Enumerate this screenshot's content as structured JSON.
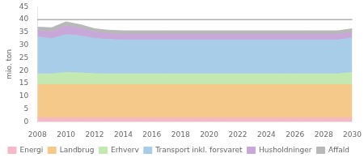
{
  "chart_data": {
    "type": "area",
    "stacked": true,
    "x": [
      2008,
      2009,
      2010,
      2011,
      2012,
      2013,
      2014,
      2015,
      2016,
      2017,
      2018,
      2019,
      2020,
      2021,
      2022,
      2023,
      2024,
      2025,
      2026,
      2027,
      2028,
      2029,
      2030
    ],
    "series": [
      {
        "name": "Energi",
        "color": "#f7b8c8",
        "values": [
          1.5,
          1.5,
          1.5,
          1.5,
          1.5,
          1.5,
          1.5,
          1.5,
          1.5,
          1.5,
          1.5,
          1.5,
          1.5,
          1.5,
          1.5,
          1.5,
          1.5,
          1.5,
          1.5,
          1.5,
          1.5,
          1.5,
          1.5
        ]
      },
      {
        "name": "Landbrug",
        "color": "#f5c98a",
        "values": [
          13.0,
          13.0,
          13.0,
          13.0,
          13.0,
          13.0,
          13.0,
          13.0,
          13.0,
          13.0,
          13.0,
          13.0,
          13.0,
          13.0,
          13.0,
          13.0,
          13.0,
          13.0,
          13.0,
          13.0,
          13.0,
          13.0,
          13.0
        ]
      },
      {
        "name": "Erhverv",
        "color": "#c3e8b0",
        "values": [
          4.2,
          4.2,
          4.8,
          4.6,
          4.3,
          4.2,
          4.2,
          4.2,
          4.2,
          4.2,
          4.2,
          4.2,
          4.2,
          4.2,
          4.2,
          4.2,
          4.2,
          4.2,
          4.2,
          4.2,
          4.2,
          4.2,
          4.8
        ]
      },
      {
        "name": "Transport inkl. forsvaret",
        "color": "#a8cde8",
        "values": [
          14.5,
          13.8,
          14.8,
          14.5,
          13.8,
          13.5,
          13.3,
          13.3,
          13.3,
          13.3,
          13.3,
          13.3,
          13.3,
          13.3,
          13.3,
          13.3,
          13.3,
          13.3,
          13.3,
          13.3,
          13.3,
          13.3,
          13.5
        ]
      },
      {
        "name": "Husholdninger",
        "color": "#c8a8d8",
        "values": [
          2.5,
          2.8,
          3.5,
          3.0,
          2.5,
          2.3,
          2.3,
          2.3,
          2.3,
          2.3,
          2.3,
          2.3,
          2.3,
          2.3,
          2.3,
          2.3,
          2.3,
          2.3,
          2.3,
          2.3,
          2.3,
          2.3,
          2.3
        ]
      },
      {
        "name": "Affald",
        "color": "#b8b8b8",
        "values": [
          1.3,
          1.5,
          1.5,
          1.4,
          1.3,
          1.3,
          1.3,
          1.3,
          1.3,
          1.3,
          1.3,
          1.3,
          1.3,
          1.3,
          1.3,
          1.3,
          1.3,
          1.3,
          1.3,
          1.3,
          1.3,
          1.3,
          1.3
        ]
      }
    ],
    "reference_line": 40,
    "xlim": [
      2008,
      2030
    ],
    "xticks": [
      2008,
      2010,
      2012,
      2014,
      2016,
      2018,
      2020,
      2022,
      2024,
      2026,
      2028,
      2030
    ],
    "ylim": [
      0,
      45
    ],
    "yticks": [
      0,
      5,
      10,
      15,
      20,
      25,
      30,
      35,
      40,
      45
    ],
    "ylabel": "mio. ton",
    "grid": false,
    "legend": "bottom"
  }
}
